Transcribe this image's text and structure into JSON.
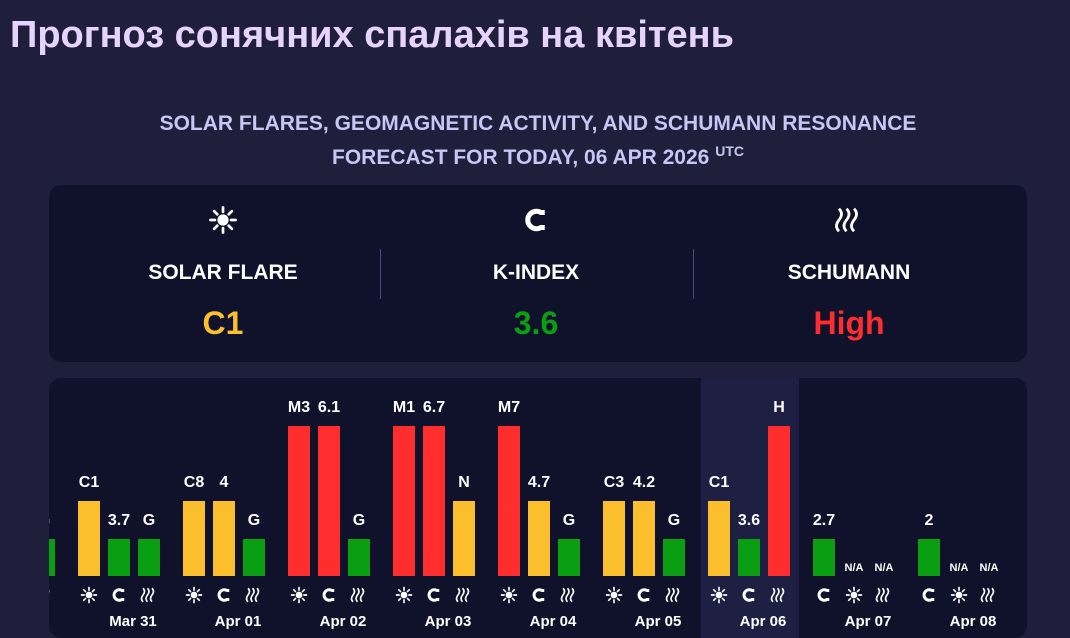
{
  "header": {
    "title": "Прогноз сонячних спалахів на квітень"
  },
  "subtitle": {
    "line1": "SOLAR FLARES, GEOMAGNETIC ACTIVITY, AND SCHUMANN RESONANCE",
    "line2": "FORECAST FOR TODAY, 06 APR 2026",
    "sup": "UTC"
  },
  "summary": [
    {
      "icon": "sun",
      "label": "SOLAR FLARE",
      "value": "C1",
      "color": "#fbbf2e"
    },
    {
      "icon": "magnet",
      "label": "K-INDEX",
      "value": "3.6",
      "color": "#0a9e12"
    },
    {
      "icon": "waves",
      "label": "SCHUMANN",
      "value": "High",
      "color": "#ff2d2d"
    }
  ],
  "days": [
    {
      "items": [
        {
          "icon": "waves",
          "label": "G",
          "color": "#0a9e12"
        }
      ]
    },
    {
      "date": "Mar 31",
      "items": [
        {
          "icon": "sun",
          "label": "C1",
          "color": "#fbbf2e"
        },
        {
          "icon": "magnet",
          "label": "3.7",
          "color": "#0a9e12"
        },
        {
          "icon": "waves",
          "label": "G",
          "color": "#0a9e12"
        }
      ]
    },
    {
      "date": "Apr 01",
      "items": [
        {
          "icon": "sun",
          "label": "C8",
          "color": "#fbbf2e"
        },
        {
          "icon": "magnet",
          "label": "4",
          "color": "#fbbf2e"
        },
        {
          "icon": "waves",
          "label": "G",
          "color": "#0a9e12"
        }
      ]
    },
    {
      "date": "Apr 02",
      "items": [
        {
          "icon": "sun",
          "label": "M3",
          "color": "#ff2d2d"
        },
        {
          "icon": "magnet",
          "label": "6.1",
          "color": "#ff2d2d"
        },
        {
          "icon": "waves",
          "label": "G",
          "color": "#0a9e12"
        }
      ]
    },
    {
      "date": "Apr 03",
      "items": [
        {
          "icon": "sun",
          "label": "M1",
          "color": "#ff2d2d"
        },
        {
          "icon": "magnet",
          "label": "6.7",
          "color": "#ff2d2d"
        },
        {
          "icon": "waves",
          "label": "N",
          "color": "#fbbf2e"
        }
      ]
    },
    {
      "date": "Apr 04",
      "items": [
        {
          "icon": "sun",
          "label": "M7",
          "color": "#ff2d2d"
        },
        {
          "icon": "magnet",
          "label": "4.7",
          "color": "#fbbf2e"
        },
        {
          "icon": "waves",
          "label": "G",
          "color": "#0a9e12"
        }
      ]
    },
    {
      "date": "Apr 05",
      "items": [
        {
          "icon": "sun",
          "label": "C3",
          "color": "#fbbf2e"
        },
        {
          "icon": "magnet",
          "label": "4.2",
          "color": "#fbbf2e"
        },
        {
          "icon": "waves",
          "label": "G",
          "color": "#0a9e12"
        }
      ]
    },
    {
      "date": "Apr 06",
      "today": true,
      "items": [
        {
          "icon": "sun",
          "label": "C1",
          "color": "#fbbf2e"
        },
        {
          "icon": "magnet",
          "label": "3.6",
          "color": "#0a9e12"
        },
        {
          "icon": "waves",
          "label": "H",
          "color": "#ff2d2d"
        }
      ]
    },
    {
      "date": "Apr 07",
      "items": [
        {
          "icon": "magnet",
          "label": "2.7",
          "color": "#0a9e12"
        },
        {
          "icon": "sun",
          "label": "N/A"
        },
        {
          "icon": "waves",
          "label": "N/A"
        }
      ]
    },
    {
      "date": "Apr 08",
      "items": [
        {
          "icon": "magnet",
          "label": "2",
          "color": "#0a9e12"
        },
        {
          "icon": "sun",
          "label": "N/A"
        },
        {
          "icon": "waves",
          "label": "N/A"
        }
      ]
    }
  ]
}
